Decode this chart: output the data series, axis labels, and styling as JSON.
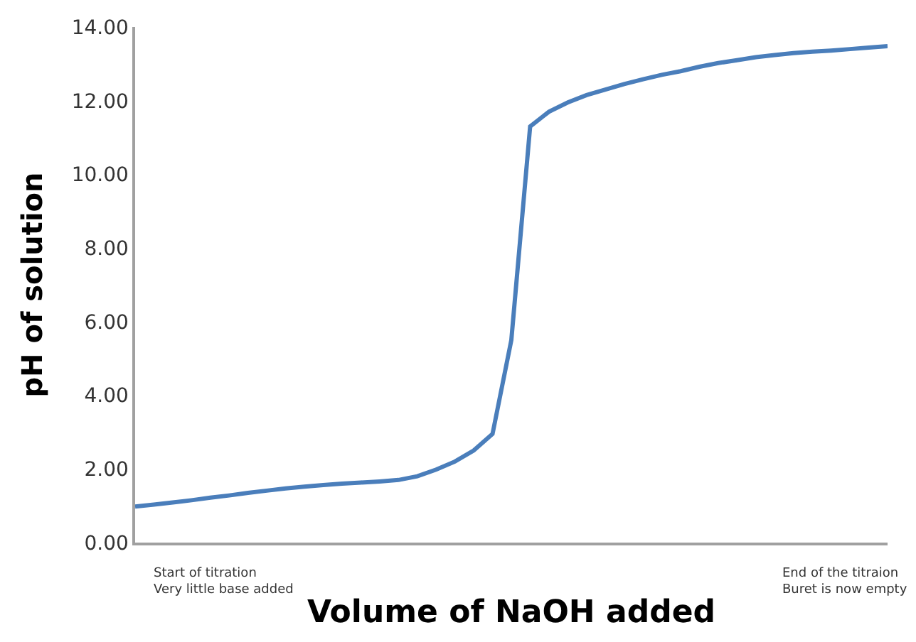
{
  "chart_data": {
    "type": "line",
    "xlabel": "Volume of NaOH added",
    "ylabel": "pH of solution",
    "categories": [
      null,
      null,
      null,
      null,
      null,
      null,
      null,
      null,
      null,
      null,
      null,
      null,
      null,
      null,
      null,
      null,
      null,
      null,
      null,
      null,
      null,
      null,
      null,
      null,
      null,
      null,
      null,
      null,
      null,
      null,
      null,
      null,
      null,
      null,
      null,
      null,
      null,
      null,
      null,
      null,
      null
    ],
    "series": [
      {
        "color": "#4a7ebb",
        "values": [
          0.98,
          1.03,
          1.09,
          1.15,
          1.22,
          1.28,
          1.35,
          1.41,
          1.47,
          1.52,
          1.56,
          1.6,
          1.63,
          1.66,
          1.7,
          1.8,
          1.98,
          2.2,
          2.5,
          2.95,
          5.5,
          11.3,
          11.7,
          11.95,
          12.15,
          12.3,
          12.45,
          12.58,
          12.7,
          12.8,
          12.92,
          13.02,
          13.1,
          13.18,
          13.24,
          13.29,
          13.33,
          13.36,
          13.4,
          13.44,
          13.48
        ]
      }
    ],
    "ylim": [
      0,
      14
    ],
    "yticks": [
      {
        "value": 0,
        "label": "0.00"
      },
      {
        "value": 2,
        "label": "2.00"
      },
      {
        "value": 4,
        "label": "4.00"
      },
      {
        "value": 6,
        "label": "6.00"
      },
      {
        "value": 8,
        "label": "8.00"
      },
      {
        "value": 10,
        "label": "10.00"
      },
      {
        "value": 12,
        "label": "12.00"
      },
      {
        "value": 14,
        "label": "14.00"
      }
    ],
    "tick_labels": "y",
    "annotations": [
      "Start of titration\nVery little base added",
      "End of the titraion\nBuret is now empty"
    ]
  }
}
